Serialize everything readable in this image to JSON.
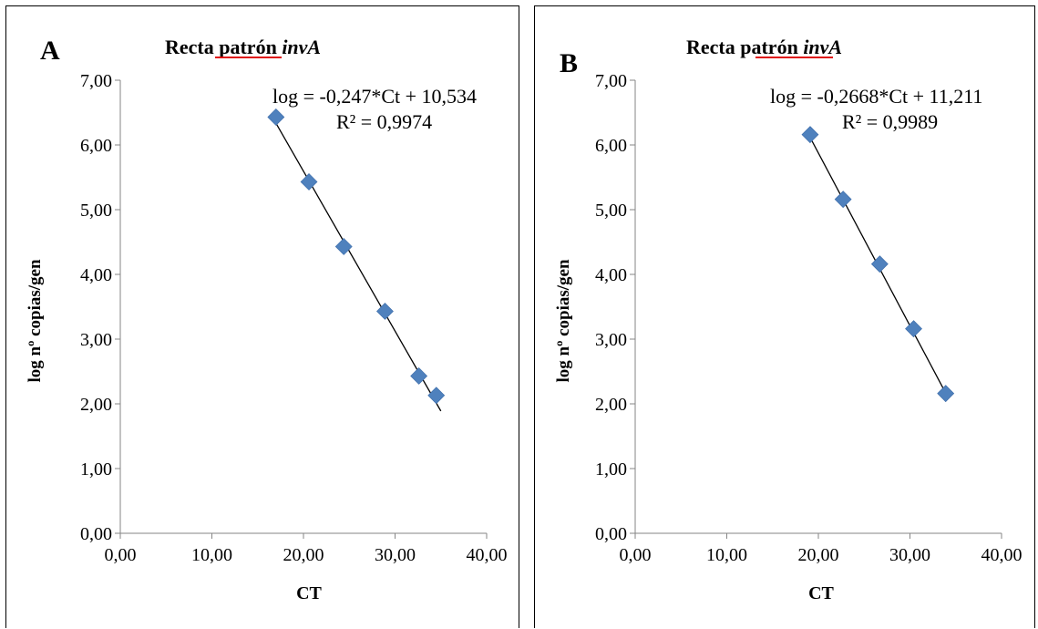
{
  "chart_data": [
    {
      "type": "scatter",
      "panel_letter": "A",
      "title": "Recta patrón invA",
      "title_plain": "Recta patrón ",
      "title_italic": "invA",
      "xlabel": "CT",
      "ylabel": "log nº copias/gen",
      "xlim": [
        0,
        40
      ],
      "ylim": [
        0,
        7
      ],
      "x_ticks": [
        "0,00",
        "10,00",
        "20,00",
        "30,00",
        "40,00"
      ],
      "y_ticks": [
        "0,00",
        "1,00",
        "2,00",
        "3,00",
        "4,00",
        "5,00",
        "6,00",
        "7,00"
      ],
      "grid": false,
      "legend": "none",
      "marker_color": "#4f81bd",
      "line_color": "#000000",
      "points": [
        {
          "x": 17.0,
          "y": 6.43
        },
        {
          "x": 20.6,
          "y": 5.43
        },
        {
          "x": 24.4,
          "y": 4.43
        },
        {
          "x": 28.9,
          "y": 3.43
        },
        {
          "x": 32.6,
          "y": 2.43
        },
        {
          "x": 34.5,
          "y": 2.13
        }
      ],
      "trendline": {
        "slope": -0.247,
        "intercept": 10.534,
        "x_start": 16.8,
        "x_end": 35.0
      },
      "equation": "log = -0,247*Ct + 10,534",
      "r2": "R² = 0,9974"
    },
    {
      "type": "scatter",
      "panel_letter": "B",
      "title": "Recta patrón invA",
      "title_plain": "Recta patrón ",
      "title_italic": "invA",
      "xlabel": "CT",
      "ylabel": "log nº copias/gen",
      "xlim": [
        0,
        40
      ],
      "ylim": [
        0,
        7
      ],
      "x_ticks": [
        "0,00",
        "10,00",
        "20,00",
        "30,00",
        "40,00"
      ],
      "y_ticks": [
        "0,00",
        "1,00",
        "2,00",
        "3,00",
        "4,00",
        "5,00",
        "6,00",
        "7,00"
      ],
      "grid": false,
      "legend": "none",
      "marker_color": "#4f81bd",
      "line_color": "#000000",
      "points": [
        {
          "x": 19.1,
          "y": 6.16
        },
        {
          "x": 22.7,
          "y": 5.16
        },
        {
          "x": 26.7,
          "y": 4.16
        },
        {
          "x": 30.4,
          "y": 3.16
        },
        {
          "x": 33.9,
          "y": 2.16
        }
      ],
      "trendline": {
        "slope": -0.2668,
        "intercept": 11.211,
        "x_start": 18.9,
        "x_end": 34.1
      },
      "equation": "log = -0,2668*Ct + 11,211",
      "r2": "R² = 0,9989"
    }
  ]
}
